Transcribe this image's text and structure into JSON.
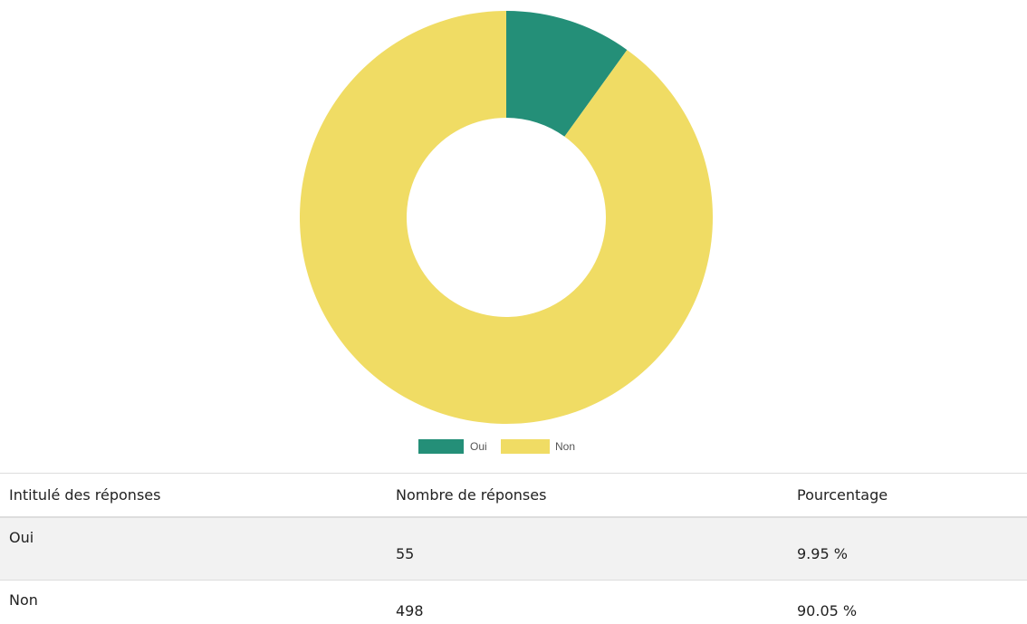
{
  "chart_data": {
    "type": "doughnut",
    "categories": [
      "Oui",
      "Non"
    ],
    "values": [
      55,
      498
    ],
    "colors": [
      "#248f78",
      "#f0dc64"
    ],
    "legend": "bottom"
  },
  "table": {
    "headers": [
      "Intitulé des réponses",
      "Nombre de réponses",
      "Pourcentage"
    ],
    "rows": [
      [
        "Oui",
        "55",
        "9.95 %"
      ],
      [
        "Non",
        "498",
        "90.05 %"
      ]
    ]
  }
}
